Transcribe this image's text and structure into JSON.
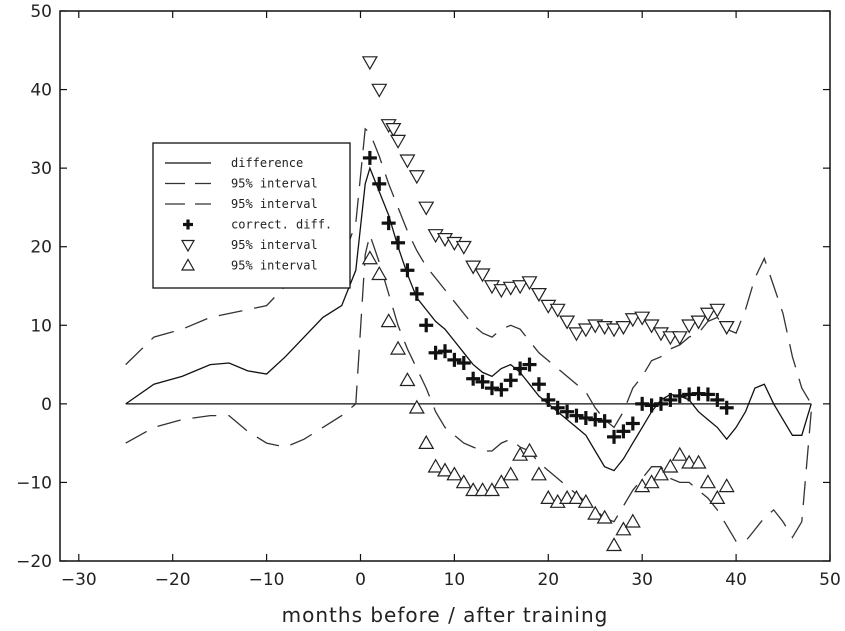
{
  "chart_data": {
    "type": "line",
    "title": "",
    "xlabel": "months before / after training",
    "ylabel": "",
    "xlim": [
      -32,
      50
    ],
    "ylim": [
      -20,
      50
    ],
    "xticks": [
      -30,
      -20,
      -10,
      0,
      10,
      20,
      30,
      40,
      50
    ],
    "yticks": [
      -20,
      -10,
      0,
      10,
      20,
      30,
      40,
      50
    ],
    "xtick_labels": [
      "−30",
      "−20",
      "−10",
      "0",
      "10",
      "20",
      "30",
      "40",
      "50"
    ],
    "ytick_labels": [
      "−20",
      "−10",
      "0",
      "10",
      "20",
      "30",
      "40",
      "50"
    ],
    "grid": false,
    "legend_position": "upper-left",
    "colors": {
      "ink": "#111111",
      "dash": "#333333",
      "frame": "#111111"
    },
    "series": [
      {
        "name": "difference",
        "style": "solid",
        "x": [
          -25,
          -22,
          -19,
          -16,
          -14,
          -12,
          -10,
          -8,
          -6,
          -4,
          -2,
          -0.5,
          0.5,
          1,
          2,
          3,
          4,
          5,
          6,
          7,
          8,
          9,
          10,
          11,
          12,
          13,
          14,
          15,
          16,
          17,
          18,
          19,
          20,
          21,
          22,
          23,
          24,
          25,
          26,
          27,
          28,
          29,
          30,
          31,
          32,
          33,
          34,
          35,
          36,
          37,
          38,
          39,
          40,
          41,
          42,
          43,
          44,
          45,
          46,
          47,
          48
        ],
        "y": [
          0,
          2.5,
          3.5,
          5,
          5.2,
          4.2,
          3.8,
          6,
          8.5,
          11,
          12.5,
          17,
          28,
          30,
          27,
          24,
          20,
          16.5,
          13.5,
          12,
          10.5,
          9.5,
          8,
          6.5,
          5,
          4,
          3.5,
          4.5,
          5,
          4,
          2.5,
          1,
          0,
          -1,
          -2,
          -3,
          -4,
          -6,
          -8,
          -8.5,
          -7,
          -5,
          -3,
          -1,
          0.5,
          1.2,
          1,
          0.5,
          -1,
          -2,
          -3,
          -4.5,
          -3,
          -1,
          2,
          2.5,
          0,
          -2,
          -4,
          -4,
          0
        ]
      },
      {
        "name": "95% interval",
        "style": "dash",
        "x": [
          -25,
          -22,
          -19,
          -16,
          -14,
          -12,
          -10,
          -8,
          -6,
          -4,
          -2,
          -0.5,
          0.5,
          1,
          2,
          3,
          4,
          5,
          6,
          7,
          8,
          9,
          10,
          11,
          12,
          13,
          14,
          15,
          16,
          17,
          18,
          19,
          20,
          21,
          22,
          23,
          24,
          25,
          26,
          27,
          28,
          29,
          30,
          31,
          32,
          33,
          34,
          35,
          36,
          37,
          38,
          39,
          40,
          41,
          42,
          43,
          44,
          45,
          46,
          47,
          48
        ],
        "y": [
          5,
          8.5,
          9.5,
          11,
          11.5,
          12,
          12.5,
          15,
          16,
          17,
          18,
          23,
          35,
          34.5,
          31.5,
          28,
          25,
          22,
          19.5,
          17.5,
          16,
          14.5,
          13,
          11.5,
          10,
          9,
          8.5,
          9.5,
          10,
          9.5,
          8,
          6.5,
          5.5,
          4.5,
          3.5,
          2.5,
          1.5,
          -0.5,
          -2,
          -3,
          -1,
          2,
          3.5,
          5.5,
          6,
          7,
          7.5,
          8.5,
          9,
          10.5,
          11,
          9.5,
          9,
          12,
          16,
          18.5,
          15,
          11.5,
          6,
          2,
          0
        ]
      },
      {
        "name": "95% interval",
        "style": "dash",
        "x": [
          -25,
          -22,
          -19,
          -16,
          -14,
          -12,
          -10,
          -8,
          -6,
          -4,
          -2,
          -0.5,
          0.5,
          1,
          2,
          3,
          4,
          5,
          6,
          7,
          8,
          9,
          10,
          11,
          12,
          13,
          14,
          15,
          16,
          17,
          18,
          19,
          20,
          21,
          22,
          23,
          24,
          25,
          26,
          27,
          28,
          29,
          30,
          31,
          32,
          33,
          34,
          35,
          36,
          37,
          38,
          39,
          40,
          41,
          42,
          43,
          44,
          45,
          46,
          47,
          48
        ],
        "y": [
          -5,
          -3,
          -2,
          -1.5,
          -1.5,
          -3.5,
          -5,
          -5.5,
          -4.5,
          -3,
          -1.5,
          0,
          19,
          21.5,
          18,
          14,
          10,
          7,
          4.5,
          2,
          -1,
          -3,
          -4,
          -5,
          -5.5,
          -6,
          -6,
          -5,
          -4.5,
          -5.5,
          -6,
          -7.5,
          -8.5,
          -9.5,
          -10.5,
          -11.5,
          -12.5,
          -13.5,
          -14.5,
          -15,
          -13,
          -11,
          -9.5,
          -8,
          -8,
          -9.5,
          -10,
          -10,
          -11,
          -12,
          -13.5,
          -15.5,
          -17.5,
          -17.5,
          -16,
          -14.5,
          -13.5,
          -15,
          -17,
          -15,
          -1
        ]
      },
      {
        "name": "correct. diff.",
        "style": "plus",
        "x": [
          1,
          2,
          3,
          4,
          5,
          6,
          7,
          8,
          9,
          10,
          11,
          12,
          13,
          14,
          15,
          16,
          17,
          18,
          19,
          20,
          21,
          22,
          23,
          24,
          25,
          26,
          27,
          28,
          29,
          30,
          31,
          32,
          33,
          34,
          35,
          36,
          37,
          38,
          39
        ],
        "y": [
          31.3,
          28,
          23,
          20.5,
          17,
          14,
          10,
          6.5,
          6.7,
          5.6,
          5.2,
          3.2,
          2.8,
          2,
          1.8,
          3,
          4.5,
          5,
          2.5,
          0.5,
          -0.5,
          -1,
          -1.5,
          -1.8,
          -2,
          -2.2,
          -4.2,
          -3.5,
          -2.5,
          0,
          -0.2,
          0,
          0.5,
          1,
          1.2,
          1.3,
          1.2,
          0.5,
          -0.5
        ]
      },
      {
        "name": "95% interval",
        "style": "triangle-down",
        "x": [
          1,
          2,
          3,
          3.5,
          4,
          5,
          6,
          7,
          8,
          9,
          10,
          11,
          12,
          13,
          14,
          15,
          16,
          17,
          18,
          19,
          20,
          21,
          22,
          23,
          24,
          25,
          26,
          27,
          28,
          29,
          30,
          31,
          32,
          33,
          34,
          35,
          36,
          37,
          38,
          39
        ],
        "y": [
          43.5,
          40,
          35.5,
          35,
          33.5,
          31,
          29,
          25,
          21.5,
          21,
          20.5,
          20,
          17.5,
          16.5,
          15,
          14.5,
          14.8,
          15,
          15.5,
          14,
          12.5,
          12,
          10.5,
          9,
          9.5,
          10,
          9.8,
          9.5,
          9.8,
          10.8,
          11,
          10,
          9,
          8.5,
          8.5,
          10,
          10.5,
          11.5,
          12,
          9.8
        ]
      },
      {
        "name": "95% interval",
        "style": "triangle-up",
        "x": [
          1,
          2,
          3,
          4,
          5,
          6,
          7,
          8,
          9,
          10,
          11,
          12,
          13,
          14,
          15,
          16,
          17,
          18,
          19,
          20,
          21,
          22,
          23,
          24,
          25,
          26,
          27,
          28,
          29,
          30,
          31,
          32,
          33,
          34,
          35,
          36,
          37,
          38,
          39
        ],
        "y": [
          18.5,
          16.5,
          10.5,
          7,
          3,
          -0.5,
          -5,
          -8,
          -8.5,
          -9,
          -10,
          -11,
          -11,
          -11,
          -10,
          -9,
          -6.5,
          -6,
          -9,
          -12,
          -12.5,
          -12,
          -12,
          -12.5,
          -14,
          -14.5,
          -18,
          -16,
          -15,
          -10.5,
          -10,
          -9,
          -8,
          -6.5,
          -7.5,
          -7.5,
          -10,
          -12,
          -10.5
        ]
      }
    ],
    "reference_line": {
      "y": 0,
      "x_from": -25,
      "x_to": 48
    }
  }
}
